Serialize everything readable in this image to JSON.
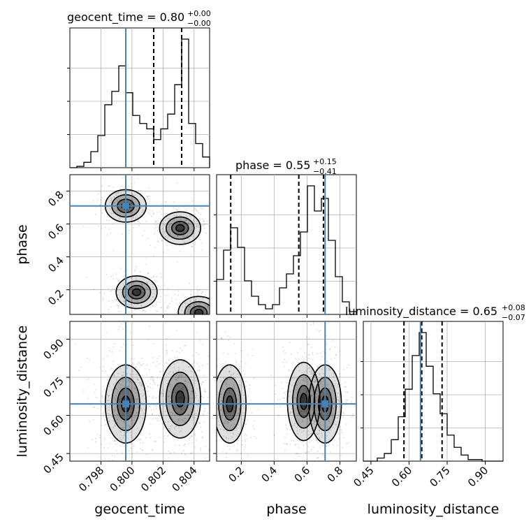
{
  "chart_data": {
    "type": "corner",
    "parameters": [
      "geocent_time",
      "phase",
      "luminosity_distance"
    ],
    "truth": {
      "geocent_time": 0.7996,
      "phase": 0.71,
      "luminosity_distance": 0.645
    },
    "truth_color": "#4682b4",
    "quantile_color": "#000000",
    "grid": true,
    "titles": {
      "geocent_time": {
        "label": "geocent_time = ",
        "median": "0.80",
        "plus": "+0.00",
        "minus": "−0.00"
      },
      "phase": {
        "label": "phase = ",
        "median": "0.55",
        "plus": "+0.15",
        "minus": "−0.41"
      },
      "luminosity_distance": {
        "label": "luminosity_distance = ",
        "median": "0.65",
        "plus": "+0.08",
        "minus": "−0.07"
      }
    },
    "axes": {
      "geocent_time": {
        "range": [
          0.796,
          0.805
        ],
        "ticks": [
          0.798,
          0.8,
          0.802,
          0.804
        ],
        "tick_labels": [
          "0.798",
          "0.800",
          "0.802",
          "0.804"
        ]
      },
      "phase": {
        "range": [
          0.05,
          0.9
        ],
        "ticks": [
          0.2,
          0.4,
          0.6,
          0.8
        ],
        "tick_labels": [
          "0.2",
          "0.4",
          "0.6",
          "0.8"
        ]
      },
      "luminosity_distance": {
        "range": [
          0.42,
          0.97
        ],
        "ticks": [
          0.45,
          0.6,
          0.75,
          0.9
        ],
        "tick_labels": [
          "0.45",
          "0.60",
          "0.75",
          "0.90"
        ]
      }
    },
    "histograms": {
      "geocent_time": {
        "bin_edges": [
          0.796,
          0.79645,
          0.7969,
          0.79735,
          0.7978,
          0.79825,
          0.7987,
          0.79915,
          0.7996,
          0.80005,
          0.8005,
          0.80095,
          0.8014,
          0.80185,
          0.8023,
          0.80275,
          0.8032,
          0.80365,
          0.8041,
          0.80455,
          0.805
        ],
        "counts": [
          0.0,
          0.01,
          0.04,
          0.12,
          0.24,
          0.47,
          0.57,
          0.76,
          0.56,
          0.39,
          0.33,
          0.29,
          0.21,
          0.29,
          0.4,
          0.62,
          0.96,
          0.33,
          0.18,
          0.08
        ],
        "quantiles": [
          0.7996,
          0.8014,
          0.8032
        ]
      },
      "phase": {
        "bin_edges": [
          0.05,
          0.0925,
          0.135,
          0.1775,
          0.22,
          0.2625,
          0.305,
          0.3475,
          0.39,
          0.4325,
          0.475,
          0.5175,
          0.56,
          0.6025,
          0.645,
          0.6875,
          0.73,
          0.7725,
          0.815,
          0.8575,
          0.9
        ],
        "counts": [
          0.25,
          0.46,
          0.62,
          0.48,
          0.24,
          0.13,
          0.07,
          0.04,
          0.07,
          0.19,
          0.29,
          0.42,
          0.59,
          0.92,
          0.74,
          0.83,
          0.53,
          0.27,
          0.09,
          0.02
        ],
        "quantiles": [
          0.136,
          0.55,
          0.7
        ]
      },
      "luminosity_distance": {
        "bin_edges": [
          0.42,
          0.4475,
          0.475,
          0.5025,
          0.53,
          0.5575,
          0.585,
          0.6125,
          0.64,
          0.6675,
          0.695,
          0.7225,
          0.75,
          0.7775,
          0.805,
          0.8325,
          0.86,
          0.8875,
          0.915,
          0.9425,
          0.97
        ],
        "counts": [
          0.0,
          0.0,
          0.02,
          0.05,
          0.14,
          0.29,
          0.47,
          0.69,
          0.84,
          0.62,
          0.44,
          0.31,
          0.17,
          0.09,
          0.04,
          0.01,
          0.01,
          0.0,
          0.0,
          0.0
        ],
        "quantiles": [
          0.58,
          0.65,
          0.73
        ]
      }
    },
    "pairs": [
      {
        "x": "geocent_time",
        "y": "phase",
        "modes": [
          [
            0.7996,
            0.71
          ],
          [
            0.8031,
            0.575
          ],
          [
            0.8003,
            0.185
          ],
          [
            0.8043,
            0.06
          ]
        ]
      },
      {
        "x": "geocent_time",
        "y": "luminosity_distance",
        "modes": [
          [
            0.7996,
            0.645
          ],
          [
            0.8031,
            0.665
          ]
        ]
      },
      {
        "x": "phase",
        "y": "luminosity_distance",
        "modes": [
          [
            0.13,
            0.645
          ],
          [
            0.58,
            0.655
          ],
          [
            0.71,
            0.645
          ]
        ]
      }
    ],
    "axis_labels": {
      "geocent_time": "geocent_time",
      "phase": "phase",
      "luminosity_distance": "luminosity_distance"
    }
  }
}
